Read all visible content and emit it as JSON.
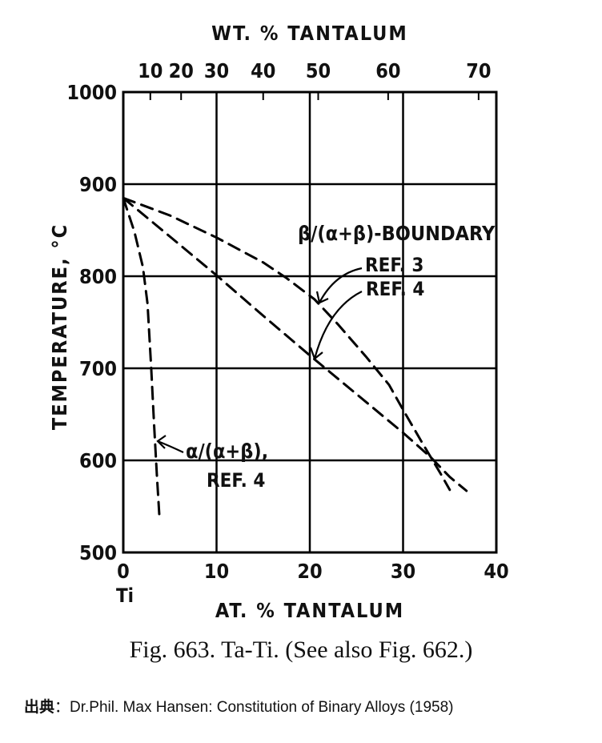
{
  "chart_data": {
    "type": "line",
    "top_axis_title": "WT. % TANTALUM",
    "top_ticks": [
      {
        "label": "10",
        "at": 2.9
      },
      {
        "label": "20",
        "at": 6.2
      },
      {
        "label": "30",
        "at": 10.0
      },
      {
        "label": "40",
        "at": 15.0
      },
      {
        "label": "50",
        "at": 20.9
      },
      {
        "label": "60",
        "at": 28.4
      },
      {
        "label": "70",
        "at": 38.1
      }
    ],
    "xlabel": "AT. % TANTALUM",
    "ylabel": "TEMPERATURE, °C",
    "xlim": [
      0,
      40
    ],
    "ylim": [
      500,
      1000
    ],
    "x_ticks": [
      0,
      10,
      20,
      30,
      40
    ],
    "y_ticks": [
      500,
      600,
      700,
      800,
      900,
      1000
    ],
    "x_zero_label": "Ti",
    "grid": true,
    "series": [
      {
        "name": "β/(α+β)-BOUNDARY REF. 3",
        "style": "dashed",
        "points": [
          [
            0,
            885
          ],
          [
            5,
            866
          ],
          [
            10,
            842
          ],
          [
            15,
            815
          ],
          [
            17.5,
            798
          ],
          [
            20.5,
            775
          ],
          [
            23,
            748
          ],
          [
            26,
            713
          ],
          [
            28.5,
            682
          ],
          [
            30,
            655
          ],
          [
            32,
            620
          ],
          [
            34,
            586
          ],
          [
            35,
            568
          ]
        ]
      },
      {
        "name": "β/(α+β)-BOUNDARY REF. 4",
        "style": "dashed",
        "points": [
          [
            0,
            885
          ],
          [
            5,
            843
          ],
          [
            10,
            801
          ],
          [
            15,
            757
          ],
          [
            20,
            714
          ],
          [
            25,
            672
          ],
          [
            30,
            630
          ],
          [
            33,
            603
          ],
          [
            35,
            582
          ],
          [
            36.8,
            567
          ]
        ]
      },
      {
        "name": "α/(α+β), REF. 4",
        "style": "dashed",
        "points": [
          [
            0,
            885
          ],
          [
            1.2,
            848
          ],
          [
            2.1,
            810
          ],
          [
            2.6,
            770
          ],
          [
            3.0,
            700
          ],
          [
            3.3,
            640
          ],
          [
            3.6,
            585
          ],
          [
            3.9,
            535
          ]
        ]
      }
    ],
    "annotations": [
      {
        "lines": [
          "β/(α+β)-BOUNDARY"
        ]
      },
      {
        "lines": [
          "REF. 3"
        ]
      },
      {
        "lines": [
          "REF. 4"
        ]
      },
      {
        "lines": [
          "α/(α+β),",
          "REF. 4"
        ]
      }
    ]
  },
  "caption": "Fig. 663. Ta-Ti. (See also Fig. 662.)",
  "source": {
    "label": "出典",
    "separator": "：",
    "text": "Dr.Phil. Max Hansen: Constitution of Binary Alloys (1958)"
  }
}
